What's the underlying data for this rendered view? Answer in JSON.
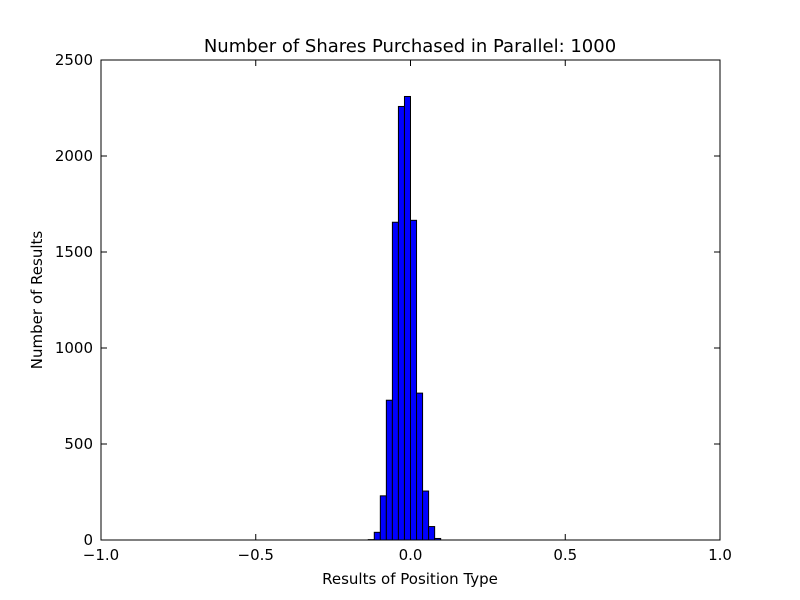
{
  "chart_data": {
    "type": "bar",
    "title": "Number of Shares Purchased in Parallel: 1000",
    "xlabel": "Results of Position Type",
    "ylabel": "Number of Results",
    "xlim": [
      -1.0,
      1.0
    ],
    "ylim": [
      0,
      2500
    ],
    "xticks": [
      "−1.0",
      "−0.5",
      "0.0",
      "0.5",
      "1.0"
    ],
    "xtick_values": [
      -1.0,
      -0.5,
      0.0,
      0.5,
      1.0
    ],
    "yticks": [
      "0",
      "500",
      "1000",
      "1500",
      "2000",
      "2500"
    ],
    "ytick_values": [
      0,
      500,
      1000,
      1500,
      2000,
      2500
    ],
    "bin_width": 0.0195,
    "bins": [
      {
        "x0": -0.1365,
        "count": 2
      },
      {
        "x0": -0.117,
        "count": 40
      },
      {
        "x0": -0.0975,
        "count": 230
      },
      {
        "x0": -0.078,
        "count": 728
      },
      {
        "x0": -0.0585,
        "count": 1655
      },
      {
        "x0": -0.039,
        "count": 2258
      },
      {
        "x0": -0.0195,
        "count": 2310
      },
      {
        "x0": 0.0,
        "count": 1665
      },
      {
        "x0": 0.0195,
        "count": 765
      },
      {
        "x0": 0.039,
        "count": 255
      },
      {
        "x0": 0.0585,
        "count": 70
      },
      {
        "x0": 0.078,
        "count": 8
      }
    ],
    "bar_color": "#0000ff",
    "edge_color": "#000000",
    "grid": false,
    "legend": "none"
  }
}
